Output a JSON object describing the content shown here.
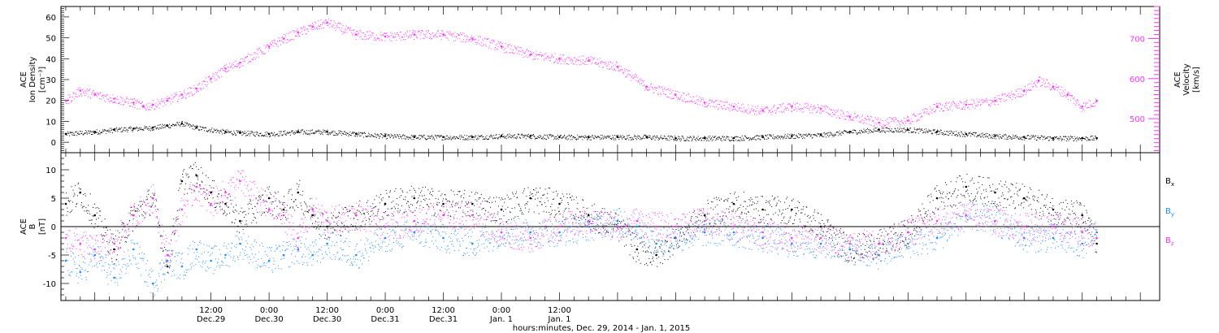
{
  "chart_data": [
    {
      "type": "scatter",
      "panel": "top",
      "ylabel": [
        "ACE",
        "Ion Density",
        "[cm⁻³]"
      ],
      "ylabel_right": [
        "ACE",
        "Velocity",
        "[km/s]"
      ],
      "ylim": [
        -5,
        65
      ],
      "yticks": [
        0,
        10,
        20,
        30,
        40,
        50,
        60
      ],
      "ylim_right": [
        415,
        780
      ],
      "yticks_right": [
        500,
        600,
        700
      ],
      "series": [
        {
          "axis": "left",
          "color": "#000000",
          "x": [
            -18,
            -12,
            -8,
            -4,
            0,
            3,
            6,
            9,
            15,
            18,
            24,
            30,
            36,
            42,
            48,
            54,
            60,
            66,
            72,
            78,
            84,
            90,
            96,
            102,
            108,
            114,
            120,
            126,
            132,
            138,
            144,
            150,
            156,
            162,
            168,
            174,
            180,
            186,
            192,
            195
          ],
          "y": [
            4,
            5,
            6,
            6.5,
            7,
            8,
            9,
            7,
            5,
            4.5,
            4,
            5,
            5,
            4,
            3,
            2.5,
            2.5,
            2.5,
            3,
            3,
            2.5,
            2.5,
            2.5,
            2.5,
            2,
            2,
            2,
            2.5,
            3,
            3.5,
            5,
            6,
            6,
            5,
            4,
            3,
            2.5,
            2,
            2,
            2
          ]
        },
        {
          "axis": "right",
          "color": "#ff33ff",
          "x": [
            -18,
            -15,
            -12,
            -8,
            -4,
            -2,
            0,
            3,
            6,
            9,
            12,
            15,
            18,
            24,
            27,
            30,
            33,
            36,
            42,
            48,
            54,
            60,
            66,
            72,
            78,
            84,
            90,
            96,
            102,
            108,
            114,
            120,
            126,
            132,
            138,
            144,
            150,
            156,
            162,
            168,
            174,
            180,
            183,
            186,
            189,
            192,
            195
          ],
          "y": [
            545,
            570,
            560,
            550,
            540,
            530,
            535,
            545,
            560,
            575,
            600,
            625,
            640,
            680,
            700,
            715,
            730,
            740,
            710,
            705,
            710,
            710,
            700,
            680,
            660,
            650,
            645,
            630,
            580,
            560,
            540,
            530,
            520,
            530,
            525,
            505,
            490,
            495,
            530,
            535,
            545,
            570,
            595,
            580,
            560,
            530,
            545
          ]
        }
      ]
    },
    {
      "type": "scatter",
      "panel": "bottom",
      "ylabel": [
        "ACE",
        "B",
        "[nT]"
      ],
      "ylim": [
        -13,
        13
      ],
      "yticks": [
        -10,
        -5,
        0,
        5,
        10
      ],
      "zero_line": true,
      "series": [
        {
          "name": "Bx",
          "color": "#000000",
          "x": [
            -18,
            -15,
            -12,
            -8,
            -4,
            0,
            3,
            6,
            9,
            12,
            15,
            18,
            24,
            27,
            30,
            33,
            36,
            42,
            48,
            54,
            60,
            66,
            72,
            78,
            84,
            90,
            96,
            100,
            104,
            108,
            114,
            120,
            126,
            132,
            138,
            144,
            150,
            156,
            162,
            168,
            174,
            180,
            186,
            192,
            195
          ],
          "y": [
            4,
            6,
            2,
            -4,
            2,
            5,
            -7,
            8,
            9,
            6,
            4,
            1,
            5,
            3,
            6,
            2,
            0,
            2,
            4,
            5,
            4,
            4,
            3,
            5,
            4,
            2,
            0,
            -4,
            -5,
            -2,
            2,
            4,
            3,
            3,
            0,
            -4,
            -3,
            -1,
            5,
            7,
            6,
            5,
            3,
            2,
            -3
          ]
        },
        {
          "name": "By",
          "color": "#1a8cff",
          "x": [
            -18,
            -15,
            -12,
            -8,
            -4,
            0,
            3,
            6,
            9,
            12,
            15,
            18,
            24,
            27,
            30,
            33,
            36,
            42,
            48,
            54,
            60,
            66,
            72,
            78,
            84,
            90,
            96,
            100,
            104,
            108,
            114,
            120,
            126,
            132,
            138,
            144,
            150,
            156,
            162,
            168,
            174,
            180,
            186,
            192,
            195
          ],
          "y": [
            -6,
            -8,
            -5,
            -9,
            -4,
            -10,
            -6,
            -7,
            -4,
            -6,
            -5,
            -3,
            -6,
            -5,
            -4,
            -5,
            -3,
            -5,
            -2,
            -1,
            -2,
            -3,
            -1,
            -1,
            -1,
            0,
            1,
            0,
            -3,
            -2,
            -1,
            -1,
            -2,
            -3,
            -3,
            -4,
            -5,
            -3,
            -2,
            2,
            1,
            -2,
            -2,
            -3,
            -1
          ]
        },
        {
          "name": "Bz",
          "color": "#ff33ff",
          "x": [
            -18,
            -15,
            -12,
            -8,
            -4,
            0,
            3,
            6,
            9,
            12,
            15,
            18,
            24,
            27,
            30,
            33,
            36,
            42,
            48,
            54,
            60,
            66,
            72,
            78,
            84,
            90,
            96,
            100,
            104,
            108,
            114,
            120,
            126,
            132,
            138,
            144,
            150,
            156,
            162,
            168,
            174,
            180,
            186,
            192,
            195
          ],
          "y": [
            -2,
            -3,
            -4,
            -3,
            2,
            5,
            -5,
            3,
            7,
            4,
            6,
            8,
            3,
            2,
            -2,
            3,
            1,
            2,
            0,
            1,
            2,
            2,
            -1,
            -2,
            0,
            1,
            0,
            1,
            0,
            0,
            1,
            0,
            -1,
            -2,
            -2,
            -3,
            -3,
            -1,
            1,
            2,
            1,
            0,
            0,
            -1,
            -2
          ]
        }
      ]
    }
  ],
  "axes": {
    "x_unit": "hours from Dec. 29, 2014 00:00",
    "xlim": [
      -19,
      208
    ],
    "ticks": [
      {
        "hours": 12,
        "time": "12:00",
        "date": "Dec.29"
      },
      {
        "hours": 24,
        "time": "0:00",
        "date": "Dec.30"
      },
      {
        "hours": 36,
        "time": "12:00",
        "date": "Dec.30"
      },
      {
        "hours": 48,
        "time": "0:00",
        "date": "Dec.31"
      },
      {
        "hours": 60,
        "time": "12:00",
        "date": "Dec.31"
      },
      {
        "hours": 72,
        "time": "0:00",
        "date": "Jan. 1"
      },
      {
        "hours": 84,
        "time": "12:00",
        "date": "Jan. 1"
      }
    ],
    "xlabel": "hours:minutes, Dec. 29, 2014 - Jan.  1, 2015"
  },
  "legend": [
    {
      "label": "B",
      "sub": "x",
      "color": "#000000"
    },
    {
      "label": "B",
      "sub": "y",
      "color": "#1a8cff"
    },
    {
      "label": "B",
      "sub": "z",
      "color": "#ff33ff"
    }
  ]
}
